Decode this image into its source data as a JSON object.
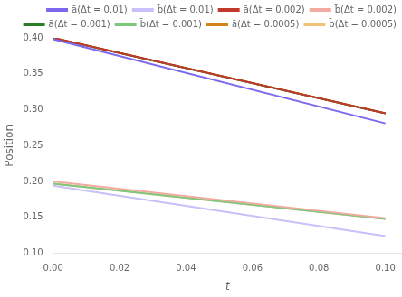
{
  "chart_data": {
    "type": "line",
    "xlabel": "t",
    "ylabel": "Position",
    "x": [
      0.0,
      0.1
    ],
    "series": [
      {
        "name": "ā(Δt = 0.01)",
        "color": "#7b68ee",
        "values": [
          0.398,
          0.281
        ]
      },
      {
        "name": "b̄(Δt = 0.01)",
        "color": "#c8c0f8",
        "values": [
          0.194,
          0.124
        ]
      },
      {
        "name": "ā(Δt = 0.002)",
        "color": "#c0392b",
        "values": [
          0.4,
          0.295
        ]
      },
      {
        "name": "b̄(Δt = 0.002)",
        "color": "#f1a9a0",
        "values": [
          0.2,
          0.149
        ]
      },
      {
        "name": "ā(Δt = 0.001)",
        "color": "#2a7e2a",
        "values": [
          0.4,
          0.295
        ]
      },
      {
        "name": "b̄(Δt = 0.001)",
        "color": "#7ec87e",
        "values": [
          0.197,
          0.148
        ]
      },
      {
        "name": "ā(Δt = 0.0005)",
        "color": "#d4821a",
        "values": [
          0.4,
          0.295
        ]
      },
      {
        "name": "b̄(Δt = 0.0005)",
        "color": "#f5c07a",
        "values": [
          0.197,
          0.148
        ]
      }
    ],
    "xlim": [
      0.0,
      0.105
    ],
    "ylim": [
      0.1,
      0.4
    ],
    "xticks": [
      {
        "value": 0.0,
        "label": "0.00"
      },
      {
        "value": 0.02,
        "label": "0.02"
      },
      {
        "value": 0.04,
        "label": "0.04"
      },
      {
        "value": 0.06,
        "label": "0.06"
      },
      {
        "value": 0.08,
        "label": "0.08"
      },
      {
        "value": 0.1,
        "label": "0.10"
      }
    ],
    "yticks": [
      {
        "value": 0.1,
        "label": "0.10"
      },
      0.15,
      {
        "value": 0.2,
        "label": "0.20"
      },
      0.25,
      {
        "value": 0.3,
        "label": "0.30"
      },
      0.35,
      {
        "value": 0.4,
        "label": "0.40"
      }
    ],
    "grid": false,
    "legend": "upper right"
  }
}
